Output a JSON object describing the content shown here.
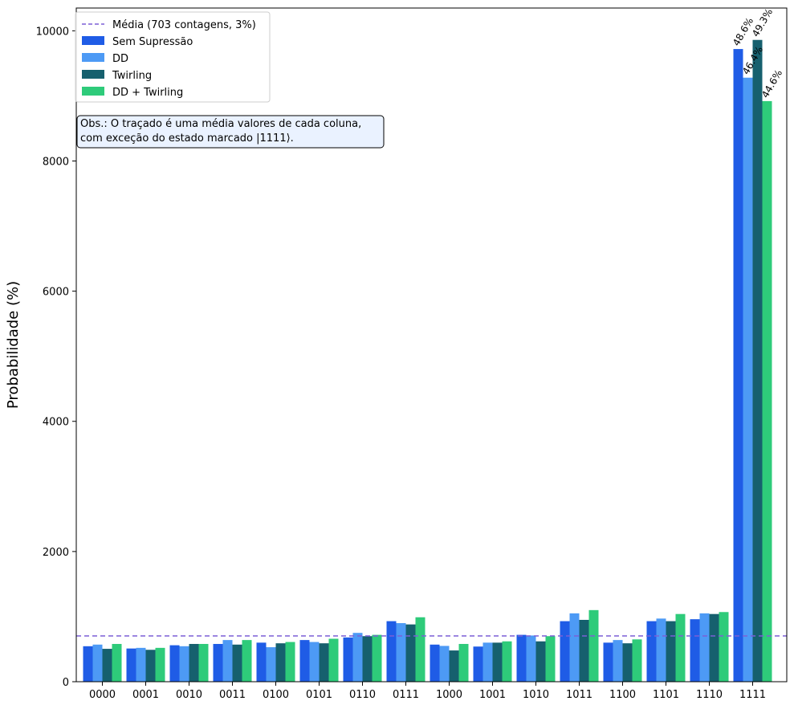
{
  "chart_data": {
    "type": "bar",
    "ylabel": "Probabilidade (%)",
    "xlabel": "",
    "ylim": [
      0,
      10350
    ],
    "yticks": [
      0,
      2000,
      4000,
      6000,
      8000,
      10000
    ],
    "grid": false,
    "legend_position": "top-left",
    "categories": [
      "0000",
      "0001",
      "0010",
      "0011",
      "0100",
      "0101",
      "0110",
      "0111",
      "1000",
      "1001",
      "1010",
      "1011",
      "1100",
      "1101",
      "1110",
      "1111"
    ],
    "series": [
      {
        "name": "Sem Supressão",
        "color": "#1f5ce6",
        "values": [
          545,
          510,
          560,
          580,
          600,
          640,
          680,
          930,
          570,
          540,
          720,
          930,
          600,
          930,
          960,
          9720
        ]
      },
      {
        "name": "DD",
        "color": "#4d9af5",
        "values": [
          570,
          520,
          545,
          640,
          530,
          610,
          750,
          900,
          550,
          600,
          710,
          1050,
          640,
          970,
          1050,
          9280
        ]
      },
      {
        "name": "Twirling",
        "color": "#16606e",
        "values": [
          505,
          490,
          580,
          570,
          590,
          590,
          700,
          880,
          480,
          600,
          620,
          950,
          590,
          930,
          1040,
          9860
        ]
      },
      {
        "name": "DD + Twirling",
        "color": "#2ecb7a",
        "values": [
          580,
          520,
          580,
          640,
          610,
          660,
          720,
          990,
          580,
          620,
          700,
          1100,
          650,
          1040,
          1070,
          8920
        ]
      }
    ],
    "bar_labels": [
      {
        "category": "1111",
        "series": "Sem Supressão",
        "text": "48.6%"
      },
      {
        "category": "1111",
        "series": "DD",
        "text": "46.4%"
      },
      {
        "category": "1111",
        "series": "Twirling",
        "text": "49.3%"
      },
      {
        "category": "1111",
        "series": "DD + Twirling",
        "text": "44.6%"
      }
    ],
    "reference_line": {
      "label": "Média (703 contagens, 3%)",
      "value": 703,
      "color": "#7b5fd6"
    },
    "annotation": {
      "lines": [
        "Obs.: O traçado é uma média valores de cada coluna,",
        "com exceção do estado marcado |1111⟩."
      ]
    }
  }
}
